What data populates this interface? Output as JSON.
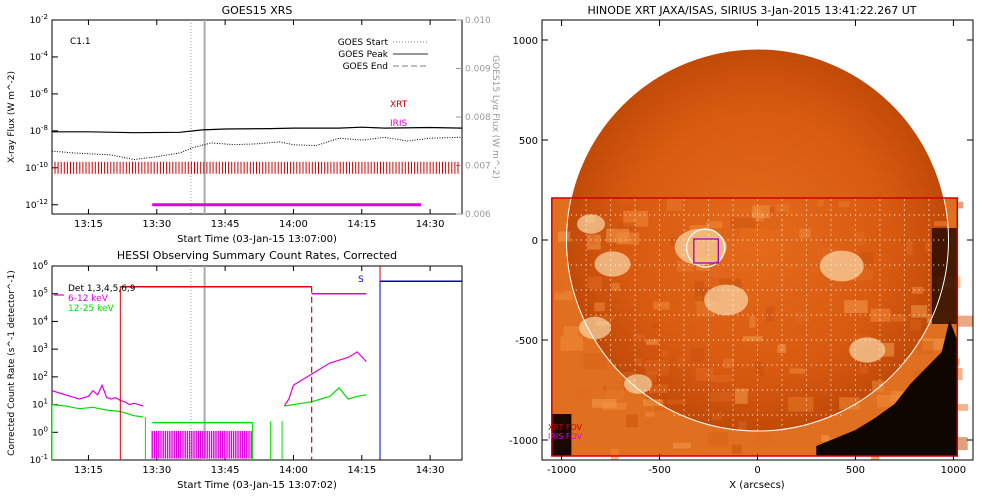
{
  "chart_data": [
    {
      "type": "line",
      "title": "GOES15 XRS",
      "xlabel": "Start Time (03-Jan-15 13:07:00)",
      "ylabel": "X-ray Flux (W m^-2)",
      "ylabel_right": "GOES15 Lyα Flux (W m^-2)",
      "annotation": "C1.1",
      "x_ticks": [
        "13:15",
        "13:30",
        "13:45",
        "14:00",
        "14:15",
        "14:30"
      ],
      "x_tick_minutes": [
        15,
        30,
        45,
        60,
        75,
        90
      ],
      "xlim_minutes": [
        7,
        97
      ],
      "y_log_ticks": [
        -12,
        -10,
        -8,
        -6,
        -4,
        -2
      ],
      "ylim_log": [
        -12.5,
        -2
      ],
      "y_right_ticks": [
        "0.006",
        "0.007",
        "0.008",
        "0.009",
        "0.010"
      ],
      "y_right_range": [
        0.006,
        0.01
      ],
      "legend": [
        "GOES Start",
        "GOES Peak",
        "GOES End"
      ],
      "goes_start_minute": 37.5,
      "goes_peak_minute": 40.5,
      "series": [
        {
          "name": "",
          "color": "#000000",
          "x": [
            7,
            15,
            25,
            35,
            38,
            40,
            45,
            55,
            60,
            70,
            75,
            80,
            90,
            97
          ],
          "y_log": [
            -8.05,
            -8.05,
            -8.1,
            -8.08,
            -8.0,
            -7.95,
            -7.9,
            -7.88,
            -7.85,
            -7.85,
            -7.8,
            -7.85,
            -7.82,
            -7.85
          ]
        },
        {
          "name": "",
          "color": "#000000",
          "style": "dotted",
          "x": [
            7,
            12,
            20,
            25,
            30,
            35,
            38,
            42,
            47,
            52,
            57,
            60,
            65,
            70,
            75,
            80,
            85,
            90,
            97
          ],
          "y_log": [
            -9.1,
            -9.2,
            -9.3,
            -9.55,
            -9.4,
            -9.2,
            -8.9,
            -8.65,
            -8.75,
            -8.7,
            -8.6,
            -8.75,
            -8.8,
            -8.4,
            -8.5,
            -8.35,
            -8.55,
            -8.4,
            -8.35
          ]
        }
      ],
      "markers": [
        {
          "label": "XRT",
          "color": "#d00000"
        },
        {
          "label": "IRIS",
          "color": "#e000e0"
        }
      ],
      "iris_bar_minutes": [
        29,
        88
      ]
    },
    {
      "type": "line",
      "title": "HESSI Observing Summary Count Rates, Corrected",
      "xlabel": "Start Time (03-Jan-15 13:07:02)",
      "ylabel": "Corrected Count Rate (s^-1 detector^-1)",
      "x_ticks": [
        "13:15",
        "13:30",
        "13:45",
        "14:00",
        "14:15",
        "14:30"
      ],
      "x_tick_minutes": [
        15,
        30,
        45,
        60,
        75,
        90
      ],
      "xlim_minutes": [
        7,
        97
      ],
      "y_log_ticks": [
        -1,
        0,
        1,
        2,
        3,
        4,
        5,
        6
      ],
      "ylim_log": [
        -1,
        6
      ],
      "legend": [
        "Det 1,3,4,5,6,9",
        "6-12 keV",
        "12-25 keV"
      ],
      "legend_colors": [
        "#000000",
        "#e000e0",
        "#00e000"
      ],
      "annotation": "S",
      "series": [
        {
          "name": "6-12 keV",
          "color": "#e000e0",
          "x": [
            7,
            9,
            11,
            13,
            15,
            16,
            17,
            18,
            19,
            20,
            21,
            22,
            23,
            24,
            25,
            27
          ],
          "y_log": [
            1.5,
            1.4,
            1.3,
            1.2,
            1.3,
            1.5,
            1.35,
            1.7,
            1.25,
            1.2,
            1.25,
            1.15,
            1.1,
            1.0,
            1.05,
            0.95
          ]
        },
        {
          "name": "6-12 keV",
          "color": "#e000e0",
          "x": [
            58,
            59,
            60,
            62,
            64,
            66,
            68,
            70,
            72,
            74,
            76
          ],
          "y_log": [
            0.95,
            1.2,
            1.7,
            1.9,
            2.1,
            2.3,
            2.5,
            2.6,
            2.7,
            2.9,
            2.55
          ]
        },
        {
          "name": "12-25 keV",
          "color": "#00e000",
          "x": [
            7,
            10,
            13,
            16,
            19,
            22,
            25,
            27
          ],
          "y_log": [
            1.0,
            0.95,
            0.85,
            0.9,
            0.8,
            0.75,
            0.6,
            0.55
          ]
        },
        {
          "name": "12-25 keV",
          "color": "#00e000",
          "x": [
            58,
            60,
            62,
            64,
            66,
            68,
            70,
            72,
            74,
            76
          ],
          "y_log": [
            0.95,
            1.0,
            1.05,
            1.1,
            1.2,
            1.3,
            1.6,
            1.2,
            1.3,
            1.35
          ]
        }
      ],
      "attenuator_segments": [
        {
          "color": "#e00000",
          "x": [
            22,
            64
          ],
          "y_log": 5.25
        },
        {
          "color": "#e000e0",
          "x": [
            64,
            76
          ],
          "y_log": 5.0
        },
        {
          "color": "#0000c8",
          "x": [
            79,
            97
          ],
          "y_log": 5.45
        }
      ]
    },
    {
      "type": "heatmap",
      "title": "HINODE XRT JAXA/ISAS, SIRIUS  3-Jan-2015 13:41:22.267 UT",
      "xlabel": "X (arcsecs)",
      "ylabel": "Y (arcsecs)",
      "x_ticks": [
        -1000,
        -500,
        0,
        500,
        1000
      ],
      "y_ticks": [
        1000,
        500,
        0,
        -500,
        -1000
      ],
      "xlim": [
        -1100,
        1100
      ],
      "ylim": [
        -1100,
        1100
      ],
      "fov_labels": [
        {
          "label": "XRT FOV",
          "color": "#d00000"
        },
        {
          "label": "IRIS FOV",
          "color": "#e000e0"
        }
      ],
      "xrt_fov": {
        "x": [
          -1050,
          1020
        ],
        "y": [
          -1080,
          210
        ]
      },
      "iris_fov": {
        "x": [
          -325,
          -200
        ],
        "y": [
          -115,
          5
        ]
      },
      "solar_radius_arcsec": 975
    }
  ]
}
